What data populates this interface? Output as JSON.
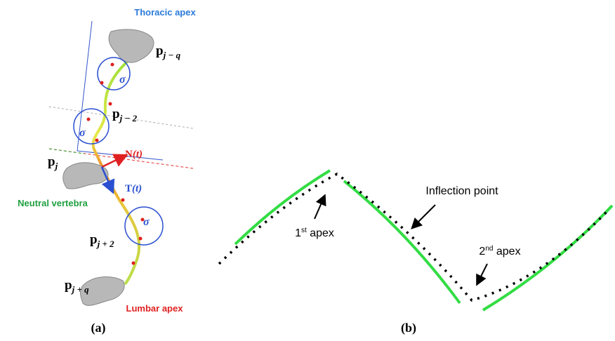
{
  "panel_a": {
    "caption": "(a)",
    "thoracic_apex": "Thoracic apex",
    "neutral_vertebra": "Neutral vertebra",
    "lumbar_apex": "Lumbar apex",
    "points": [
      {
        "base": "p",
        "sub": "j − q"
      },
      {
        "base": "p",
        "sub": "j − 2"
      },
      {
        "base": "p",
        "sub": "j"
      },
      {
        "base": "p",
        "sub": "j + 2"
      },
      {
        "base": "p",
        "sub": "j + q"
      }
    ],
    "sigma": [
      "σ",
      "σ",
      "σ"
    ],
    "normal": {
      "base": "N",
      "arg": "(t)"
    },
    "tangent": {
      "base": "T",
      "arg": "(t)"
    }
  },
  "panel_b": {
    "caption": "(b)",
    "first_apex": {
      "num": "1",
      "sup": "st",
      "rest": " apex"
    },
    "inflection_point": "Inflection point",
    "second_apex": {
      "num": "2",
      "sup": "nd",
      "rest": " apex"
    }
  }
}
